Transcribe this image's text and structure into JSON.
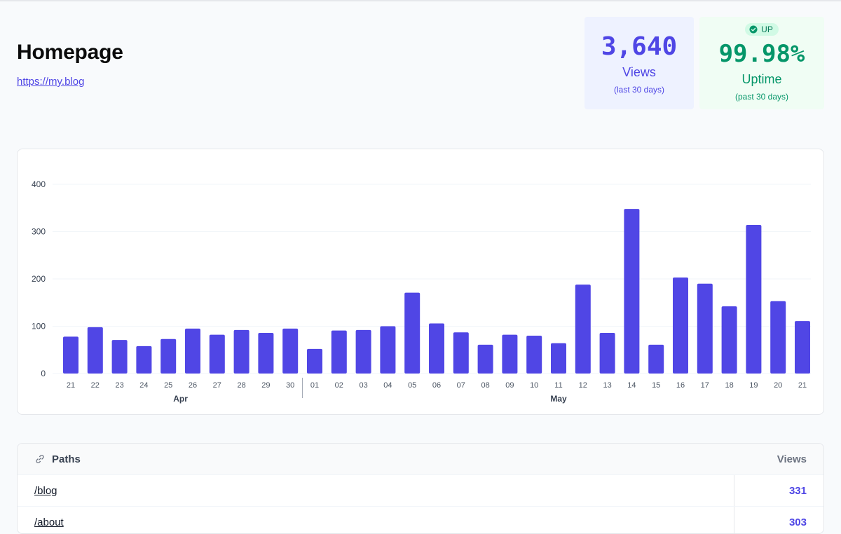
{
  "page": {
    "title": "Homepage",
    "url": "https://my.blog"
  },
  "stats": {
    "views": {
      "value": "3,640",
      "label": "Views",
      "sub": "(last 30 days)"
    },
    "uptime": {
      "badge": "UP",
      "value": "99.98%",
      "label": "Uptime",
      "sub": "(past 30 days)"
    }
  },
  "colors": {
    "bar": "#5046e5",
    "accent": "#4f46e5",
    "success": "#059669"
  },
  "chart_data": {
    "type": "bar",
    "categories": [
      "21",
      "22",
      "23",
      "24",
      "25",
      "26",
      "27",
      "28",
      "29",
      "30",
      "01",
      "02",
      "03",
      "04",
      "05",
      "06",
      "07",
      "08",
      "09",
      "10",
      "11",
      "12",
      "13",
      "14",
      "15",
      "16",
      "17",
      "18",
      "19",
      "20",
      "21"
    ],
    "values": [
      78,
      98,
      71,
      58,
      73,
      95,
      82,
      92,
      86,
      95,
      52,
      91,
      92,
      100,
      171,
      106,
      87,
      61,
      82,
      80,
      64,
      188,
      86,
      348,
      61,
      203,
      190,
      142,
      314,
      153,
      111
    ],
    "months": [
      {
        "label": "Apr",
        "start": 0,
        "end": 9
      },
      {
        "label": "May",
        "start": 10,
        "end": 30
      }
    ],
    "yticks": [
      0,
      100,
      200,
      300,
      400
    ],
    "ylim": [
      0,
      400
    ],
    "grid": true
  },
  "table": {
    "header": {
      "title": "Paths",
      "metric": "Views",
      "icon": "link-icon"
    },
    "rows": [
      {
        "path": "/blog",
        "views": "331"
      },
      {
        "path": "/about",
        "views": "303"
      }
    ]
  }
}
